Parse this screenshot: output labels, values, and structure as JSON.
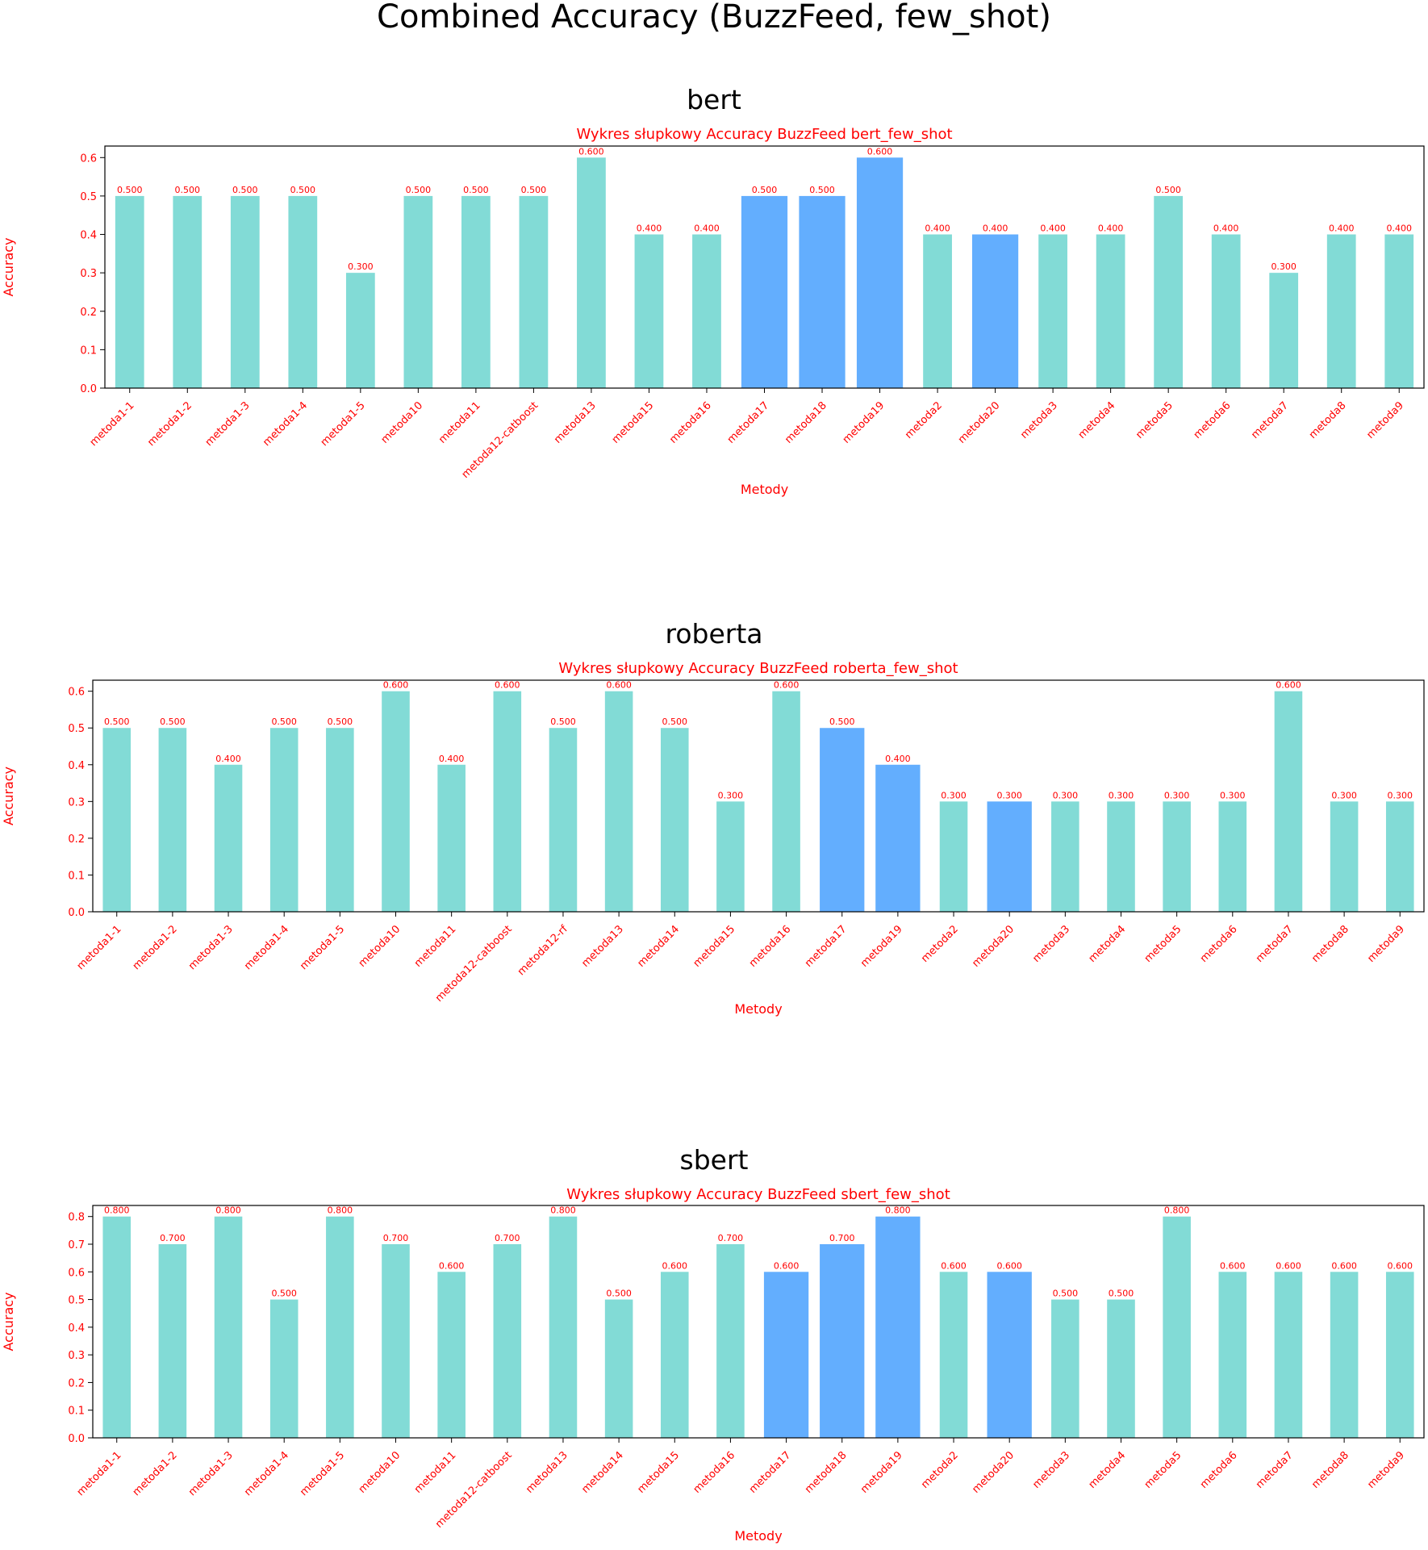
{
  "suptitle": "Combined Accuracy (BuzzFeed, few_shot)",
  "colors": {
    "standard": "#82dbd6",
    "highlight": "#63aefe",
    "text": "#ff0000",
    "axis": "#000000"
  },
  "chart_data": [
    {
      "type": "bar",
      "panel_title": "bert",
      "title": "Wykres słupkowy Accuracy BuzzFeed bert_few_shot",
      "xlabel": "Metody",
      "ylabel": "Accuracy",
      "ylim": [
        0,
        0.63
      ],
      "yticks": [
        "0.0",
        "0.1",
        "0.2",
        "0.3",
        "0.4",
        "0.5",
        "0.6"
      ],
      "categories": [
        "metoda1-1",
        "metoda1-2",
        "metoda1-3",
        "metoda1-4",
        "metoda1-5",
        "metoda10",
        "metoda11",
        "metoda12-catboost",
        "metoda13",
        "metoda15",
        "metoda16",
        "metoda17",
        "metoda18",
        "metoda19",
        "metoda2",
        "metoda20",
        "metoda3",
        "metoda4",
        "metoda5",
        "metoda6",
        "metoda7",
        "metoda8",
        "metoda9"
      ],
      "values": [
        0.5,
        0.5,
        0.5,
        0.5,
        0.3,
        0.5,
        0.5,
        0.5,
        0.6,
        0.4,
        0.4,
        0.5,
        0.5,
        0.6,
        0.4,
        0.4,
        0.4,
        0.4,
        0.5,
        0.4,
        0.3,
        0.4,
        0.4
      ],
      "labels": [
        "0.500",
        "0.500",
        "0.500",
        "0.500",
        "0.300",
        "0.500",
        "0.500",
        "0.500",
        "0.600",
        "0.400",
        "0.400",
        "0.500",
        "0.500",
        "0.600",
        "0.400",
        "0.400",
        "0.400",
        "0.400",
        "0.500",
        "0.400",
        "0.300",
        "0.400",
        "0.400"
      ],
      "highlighted": [
        "metoda17",
        "metoda18",
        "metoda19",
        "metoda20"
      ]
    },
    {
      "type": "bar",
      "panel_title": "roberta",
      "title": "Wykres słupkowy Accuracy BuzzFeed roberta_few_shot",
      "xlabel": "Metody",
      "ylabel": "Accuracy",
      "ylim": [
        0,
        0.63
      ],
      "yticks": [
        "0.0",
        "0.1",
        "0.2",
        "0.3",
        "0.4",
        "0.5",
        "0.6"
      ],
      "categories": [
        "metoda1-1",
        "metoda1-2",
        "metoda1-3",
        "metoda1-4",
        "metoda1-5",
        "metoda10",
        "metoda11",
        "metoda12-catboost",
        "metoda12-rf",
        "metoda13",
        "metoda14",
        "metoda15",
        "metoda16",
        "metoda17",
        "metoda19",
        "metoda2",
        "metoda20",
        "metoda3",
        "metoda4",
        "metoda5",
        "metoda6",
        "metoda7",
        "metoda8",
        "metoda9"
      ],
      "values": [
        0.5,
        0.5,
        0.4,
        0.5,
        0.5,
        0.6,
        0.4,
        0.6,
        0.5,
        0.6,
        0.5,
        0.3,
        0.6,
        0.5,
        0.4,
        0.3,
        0.3,
        0.3,
        0.3,
        0.3,
        0.3,
        0.6,
        0.3,
        0.3
      ],
      "labels": [
        "0.500",
        "0.500",
        "0.400",
        "0.500",
        "0.500",
        "0.600",
        "0.400",
        "0.600",
        "0.500",
        "0.600",
        "0.500",
        "0.300",
        "0.600",
        "0.500",
        "0.400",
        "0.300",
        "0.300",
        "0.300",
        "0.300",
        "0.300",
        "0.300",
        "0.600",
        "0.300",
        "0.300"
      ],
      "highlighted": [
        "metoda17",
        "metoda19",
        "metoda20"
      ]
    },
    {
      "type": "bar",
      "panel_title": "sbert",
      "title": "Wykres słupkowy Accuracy BuzzFeed sbert_few_shot",
      "xlabel": "Metody",
      "ylabel": "Accuracy",
      "ylim": [
        0,
        0.84
      ],
      "yticks": [
        "0.0",
        "0.1",
        "0.2",
        "0.3",
        "0.4",
        "0.5",
        "0.6",
        "0.7",
        "0.8"
      ],
      "categories": [
        "metoda1-1",
        "metoda1-2",
        "metoda1-3",
        "metoda1-4",
        "metoda1-5",
        "metoda10",
        "metoda11",
        "metoda12-catboost",
        "metoda13",
        "metoda14",
        "metoda15",
        "metoda16",
        "metoda17",
        "metoda18",
        "metoda19",
        "metoda2",
        "metoda20",
        "metoda3",
        "metoda4",
        "metoda5",
        "metoda6",
        "metoda7",
        "metoda8",
        "metoda9"
      ],
      "values": [
        0.8,
        0.7,
        0.8,
        0.5,
        0.8,
        0.7,
        0.6,
        0.7,
        0.8,
        0.5,
        0.6,
        0.7,
        0.6,
        0.7,
        0.8,
        0.6,
        0.6,
        0.5,
        0.5,
        0.8,
        0.6,
        0.6,
        0.6,
        0.6
      ],
      "labels": [
        "0.800",
        "0.700",
        "0.800",
        "0.500",
        "0.800",
        "0.700",
        "0.600",
        "0.700",
        "0.800",
        "0.500",
        "0.600",
        "0.700",
        "0.600",
        "0.700",
        "0.800",
        "0.600",
        "0.600",
        "0.500",
        "0.500",
        "0.800",
        "0.600",
        "0.600",
        "0.600",
        "0.600"
      ],
      "highlighted": [
        "metoda17",
        "metoda18",
        "metoda19",
        "metoda20"
      ]
    }
  ]
}
